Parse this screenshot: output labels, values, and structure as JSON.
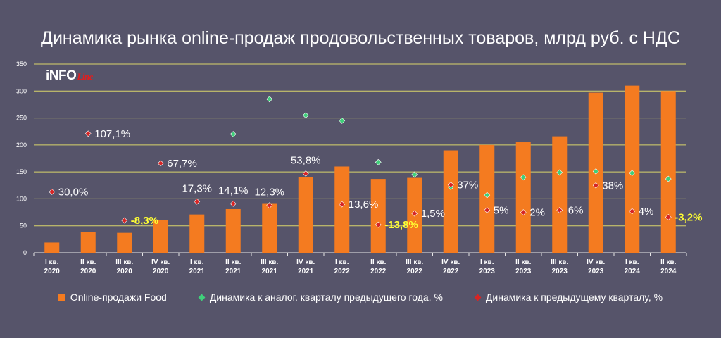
{
  "title": "Динамика рынка online-продаж продовольственных товаров, млрд руб. с НДС",
  "logo": {
    "main": "iNFO",
    "script": "Line"
  },
  "colors": {
    "background": "#56546a",
    "bar": "#f47b20",
    "grid": "#d9d46a",
    "yoy_marker": "#3fcf7a",
    "qoq_marker": "#d62525",
    "highlight_label": "#ffff33",
    "label": "#ffffff"
  },
  "chart_data": {
    "type": "bar",
    "title": "Динамика рынка online-продаж продовольственных товаров, млрд руб. с НДС",
    "ylim": [
      0,
      350
    ],
    "yticks": [
      0,
      50,
      100,
      150,
      200,
      250,
      300,
      350
    ],
    "grid": true,
    "legend_position": "bottom",
    "categories": [
      [
        "I кв.",
        "2020"
      ],
      [
        "II кв.",
        "2020"
      ],
      [
        "III кв.",
        "2020"
      ],
      [
        "IV кв.",
        "2020"
      ],
      [
        "I кв.",
        "2021"
      ],
      [
        "II кв.",
        "2021"
      ],
      [
        "III кв.",
        "2021"
      ],
      [
        "IV кв.",
        "2021"
      ],
      [
        "I кв.",
        "2022"
      ],
      [
        "II кв.",
        "2022"
      ],
      [
        "III кв.",
        "2022"
      ],
      [
        "IV кв.",
        "2022"
      ],
      [
        "I кв.",
        "2023"
      ],
      [
        "II кв.",
        "2023"
      ],
      [
        "III кв.",
        "2023"
      ],
      [
        "IV кв.",
        "2023"
      ],
      [
        "I кв.",
        "2024"
      ],
      [
        "II кв.",
        "2024"
      ]
    ],
    "series": [
      {
        "name": "Online-продажи Food",
        "kind": "bar",
        "values": [
          19,
          39,
          37,
          61,
          71,
          81,
          92,
          141,
          160,
          137,
          139,
          190,
          200,
          205,
          216,
          297,
          310,
          300
        ]
      },
      {
        "name": "Динамика к аналог. кварталу предыдущего года, %",
        "kind": "marker",
        "color": "#3fcf7a",
        "values": [
          null,
          null,
          null,
          null,
          null,
          220,
          285,
          255,
          245,
          168,
          145,
          122,
          107,
          140,
          149,
          151,
          148,
          137
        ]
      },
      {
        "name": "Динамика к предыдущему кварталу, %",
        "kind": "marker",
        "color": "#d62525",
        "values": [
          113,
          221,
          60,
          166,
          95,
          91,
          88,
          147,
          90,
          52,
          73,
          126,
          79,
          75,
          79,
          125,
          77,
          66
        ]
      }
    ],
    "point_labels": [
      {
        "i": 0,
        "y": 113,
        "text": "30,0%",
        "highlight": false
      },
      {
        "i": 1,
        "y": 221,
        "text": "107,1%",
        "highlight": false
      },
      {
        "i": 2,
        "y": 60,
        "text": "-8,3%",
        "highlight": true
      },
      {
        "i": 3,
        "y": 166,
        "text": "67,7%",
        "highlight": false
      },
      {
        "i": 4,
        "y": 95,
        "text": "17,3%",
        "highlight": false,
        "above": true
      },
      {
        "i": 5,
        "y": 91,
        "text": "14,1%",
        "highlight": false,
        "above": true
      },
      {
        "i": 6,
        "y": 88,
        "text": "12,3%",
        "highlight": false,
        "above": true
      },
      {
        "i": 7,
        "y": 147,
        "text": "53,8%",
        "highlight": false,
        "above": true
      },
      {
        "i": 8,
        "y": 90,
        "text": "13,6%",
        "highlight": false
      },
      {
        "i": 9,
        "y": 52,
        "text": "-13,8%",
        "highlight": true
      },
      {
        "i": 10,
        "y": 73,
        "text": "1,5%",
        "highlight": false
      },
      {
        "i": 11,
        "y": 126,
        "text": "37%",
        "highlight": false
      },
      {
        "i": 12,
        "y": 79,
        "text": "5%",
        "highlight": false
      },
      {
        "i": 13,
        "y": 75,
        "text": "2%",
        "highlight": false
      },
      {
        "i": 14,
        "y": 79,
        "text": "6%",
        "highlight": false,
        "left": true
      },
      {
        "i": 15,
        "y": 125,
        "text": "38%",
        "highlight": false
      },
      {
        "i": 16,
        "y": 77,
        "text": "4%",
        "highlight": false
      },
      {
        "i": 17,
        "y": 66,
        "text": "-3,2%",
        "highlight": true
      }
    ]
  },
  "legend": [
    {
      "label": "Online-продажи Food",
      "swatch": "bar"
    },
    {
      "label": "Динамика к аналог. кварталу предыдущего года, %",
      "swatch": "yoy"
    },
    {
      "label": "Динамика к предыдущему кварталу, %",
      "swatch": "qoq"
    }
  ]
}
